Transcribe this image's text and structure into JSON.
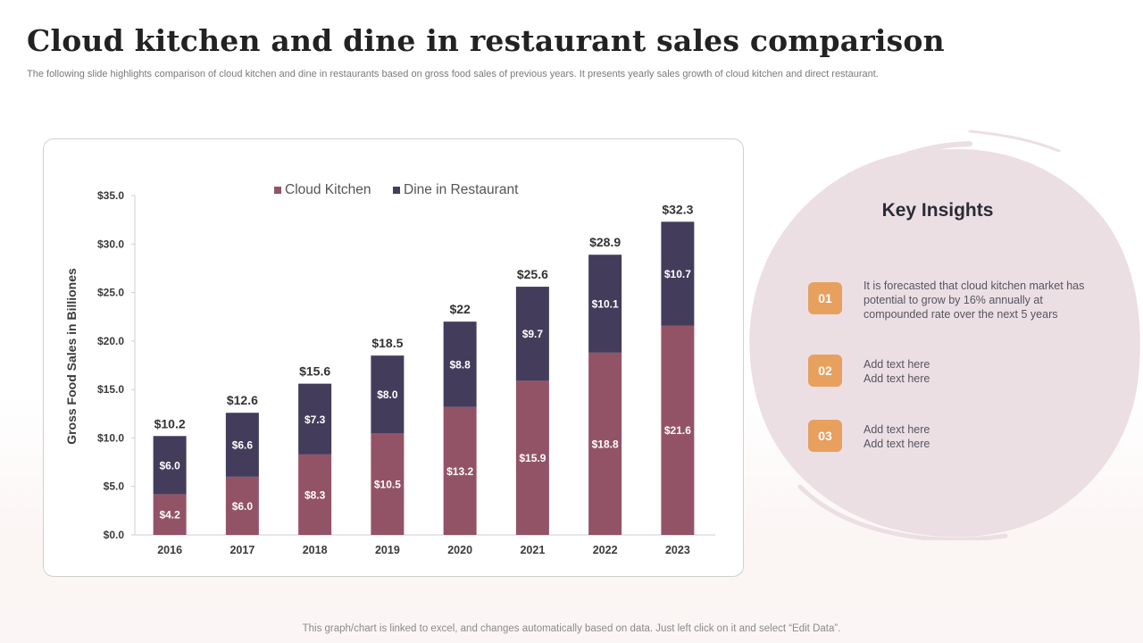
{
  "title": "Cloud kitchen and dine in restaurant sales comparison",
  "subtitle": "The following slide highlights comparison of cloud kitchen and dine in restaurants based on gross food sales of previous years. It presents yearly sales growth of cloud kitchen and direct restaurant.",
  "footer_note": "This graph/chart is linked to excel, and changes automatically based on data. Just left click on it and select “Edit Data”.",
  "colors": {
    "cloud_kitchen": "#935366",
    "dine_in": "#433d5b",
    "badge": "#e8a05f",
    "blob": "#ecdfe4"
  },
  "insights": {
    "title": "Key Insights",
    "items": [
      {
        "number": "01",
        "text": "It is forecasted that cloud kitchen market has potential to grow by 16% annually at compounded rate over the next 5 years"
      },
      {
        "number": "02",
        "text": "Add text here\nAdd text here"
      },
      {
        "number": "03",
        "text": "Add text here\nAdd text here"
      }
    ]
  },
  "chart_data": {
    "type": "bar",
    "stacked": true,
    "title": "",
    "xlabel": "",
    "ylabel": "Gross Food Sales  in Billiones",
    "ylim": [
      0,
      35
    ],
    "ytick_step": 5,
    "ytick_labels": [
      "$0.0",
      "$5.0",
      "$10.0",
      "$15.0",
      "$20.0",
      "$25.0",
      "$30.0",
      "$35.0"
    ],
    "categories": [
      "2016",
      "2017",
      "2018",
      "2019",
      "2020",
      "2021",
      "2022",
      "2023"
    ],
    "legend_position": "top-center",
    "series": [
      {
        "name": "Cloud Kitchen",
        "values": [
          4.2,
          6.0,
          8.3,
          10.5,
          13.2,
          15.9,
          18.8,
          21.6
        ],
        "labels": [
          "$4.2",
          "$6.0",
          "$8.3",
          "$10.5",
          "$13.2",
          "$15.9",
          "$18.8",
          "$21.6"
        ]
      },
      {
        "name": "Dine in Restaurant",
        "values": [
          6.0,
          6.6,
          7.3,
          8.0,
          8.8,
          9.7,
          10.1,
          10.7
        ],
        "labels": [
          "$6.0",
          "$6.6",
          "$7.3",
          "$8.0",
          "$8.8",
          "$9.7",
          "$10.1",
          "$10.7"
        ]
      }
    ],
    "totals": [
      "$10.2",
      "$12.6",
      "$15.6",
      "$18.5",
      "$22",
      "$25.6",
      "$28.9",
      "$32.3"
    ]
  }
}
